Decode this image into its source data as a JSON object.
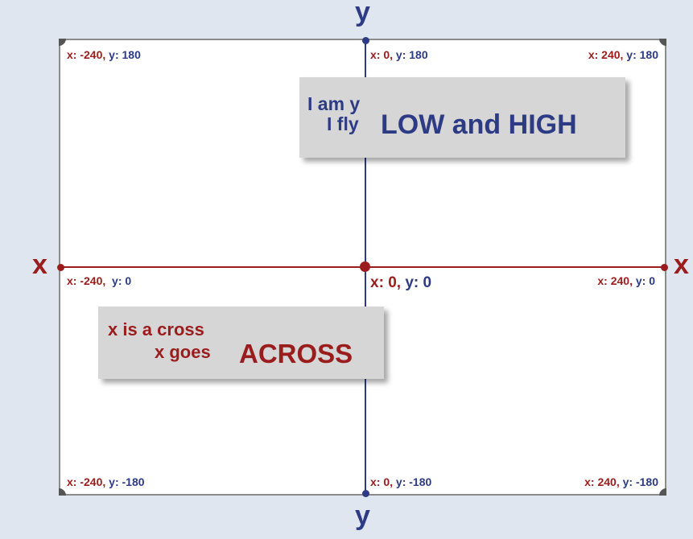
{
  "colors": {
    "x_axis": "#9b1c1c",
    "y_axis": "#2d3a84",
    "background": "#dfe6ef",
    "stage": "#ffffff",
    "note_box": "#d6d6d6"
  },
  "axis_labels": {
    "x_left": "x",
    "x_right": "x",
    "y_top": "y",
    "y_bottom": "y"
  },
  "coordinates": {
    "top_left": {
      "x": "-240",
      "y": "180"
    },
    "top_center": {
      "x": "0",
      "y": "180"
    },
    "top_right": {
      "x": "240",
      "y": "180"
    },
    "mid_left": {
      "x": "-240",
      "y": "0"
    },
    "center": {
      "x": "0",
      "y": "0"
    },
    "mid_right": {
      "x": "240",
      "y": "0"
    },
    "bottom_left": {
      "x": "-240",
      "y": "-180"
    },
    "bottom_center": {
      "x": "0",
      "y": "-180"
    },
    "bottom_right": {
      "x": "240",
      "y": "-180"
    }
  },
  "coord_keys": {
    "x": "x:",
    "y": "y:",
    "sep": ","
  },
  "notes": {
    "y_note": {
      "line1": "I am y",
      "line2_small": "I fly",
      "line2_big": "LOW and HIGH"
    },
    "x_note": {
      "line1": "x is a cross",
      "line2_small": "x goes",
      "line2_big": "ACROSS"
    }
  }
}
